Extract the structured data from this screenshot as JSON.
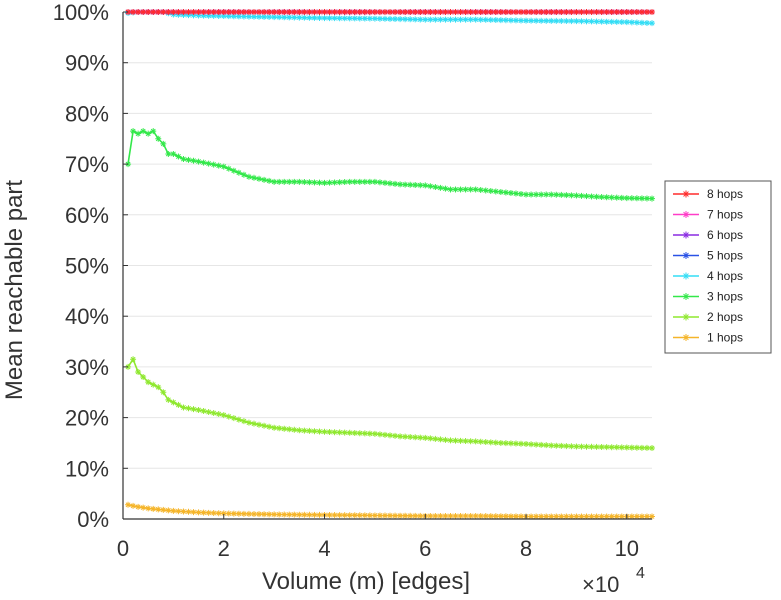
{
  "chart_data": {
    "type": "line",
    "xlabel": "Volume (m) [edges]",
    "ylabel": "Mean reachable part",
    "x_exponent": {
      "base": "×10",
      "power": "4"
    },
    "xlim": [
      0,
      10.5
    ],
    "ylim": [
      0,
      100
    ],
    "x_ticks": [
      0,
      2,
      4,
      6,
      8,
      10
    ],
    "x_tick_labels": [
      "0",
      "2",
      "4",
      "6",
      "8",
      "10"
    ],
    "y_ticks": [
      0,
      10,
      20,
      30,
      40,
      50,
      60,
      70,
      80,
      90,
      100
    ],
    "y_tick_labels": [
      "0%",
      "10%",
      "20%",
      "30%",
      "40%",
      "50%",
      "60%",
      "70%",
      "80%",
      "90%",
      "100%"
    ],
    "grid": true,
    "legend_position": "outside-right",
    "series": [
      {
        "name": "8 hops",
        "color": "#ff2b2b",
        "x": [
          0.1,
          0.5,
          1,
          2,
          3,
          4,
          5,
          6,
          7,
          8,
          9,
          10,
          10.5
        ],
        "y": [
          100,
          100,
          100,
          100,
          100,
          100,
          100,
          100,
          100,
          100,
          100,
          100,
          100
        ]
      },
      {
        "name": "7 hops",
        "color": "#ff3dc8",
        "x": [
          0.1,
          0.5,
          1,
          2,
          3,
          4,
          5,
          6,
          7,
          8,
          9,
          10,
          10.5
        ],
        "y": [
          100,
          100,
          100,
          100,
          100,
          100,
          100,
          100,
          100,
          100,
          100,
          100,
          100
        ]
      },
      {
        "name": "6 hops",
        "color": "#8a2be2",
        "x": [
          0.1,
          0.5,
          1,
          2,
          3,
          4,
          5,
          6,
          7,
          8,
          9,
          10,
          10.5
        ],
        "y": [
          100,
          100,
          100,
          100,
          100,
          100,
          100,
          100,
          100,
          100,
          100,
          100,
          100
        ]
      },
      {
        "name": "5 hops",
        "color": "#2a52e6",
        "x": [
          0.1,
          0.5,
          1,
          2,
          3,
          4,
          5,
          6,
          7,
          8,
          9,
          10,
          10.5
        ],
        "y": [
          100,
          100,
          100,
          100,
          100,
          100,
          100,
          100,
          100,
          100,
          100,
          100,
          100
        ]
      },
      {
        "name": "4 hops",
        "color": "#33ddf5",
        "x": [
          0.1,
          0.3,
          0.5,
          0.8,
          1,
          1.5,
          2,
          3,
          4,
          5,
          6,
          7,
          8,
          9,
          10,
          10.5
        ],
        "y": [
          99.8,
          100,
          100,
          100,
          99.5,
          99.3,
          99.2,
          99,
          98.8,
          98.7,
          98.5,
          98.5,
          98.3,
          98.2,
          98,
          97.8
        ]
      },
      {
        "name": "3 hops",
        "color": "#33e84a",
        "x": [
          0.1,
          0.2,
          0.3,
          0.4,
          0.5,
          0.6,
          0.7,
          0.8,
          0.9,
          1.0,
          1.2,
          1.5,
          2,
          2.5,
          3,
          3.5,
          4,
          4.5,
          5,
          5.5,
          6,
          6.5,
          7,
          7.5,
          8,
          8.5,
          9,
          9.5,
          10,
          10.5
        ],
        "y": [
          70,
          76.5,
          76,
          76.5,
          76,
          76.5,
          75,
          74,
          72,
          72,
          71,
          70.5,
          69.5,
          67.5,
          66.5,
          66.5,
          66.3,
          66.5,
          66.5,
          66,
          65.8,
          65,
          65,
          64.5,
          64,
          64,
          63.8,
          63.5,
          63.3,
          63.2
        ]
      },
      {
        "name": "2 hops",
        "color": "#8fe82f",
        "x": [
          0.1,
          0.2,
          0.3,
          0.4,
          0.5,
          0.6,
          0.7,
          0.8,
          0.9,
          1.0,
          1.2,
          1.5,
          2,
          2.5,
          3,
          3.5,
          4,
          4.5,
          5,
          5.5,
          6,
          6.5,
          7,
          7.5,
          8,
          8.5,
          9,
          9.5,
          10,
          10.5
        ],
        "y": [
          30,
          31.5,
          29,
          28,
          27,
          26.5,
          26,
          25,
          23.5,
          23,
          22,
          21.5,
          20.5,
          19,
          18,
          17.5,
          17.2,
          17,
          16.8,
          16.3,
          16,
          15.5,
          15.3,
          15,
          14.8,
          14.5,
          14.3,
          14.2,
          14.1,
          14
        ]
      },
      {
        "name": "1 hops",
        "color": "#f5b52a",
        "x": [
          0.1,
          0.2,
          0.3,
          0.5,
          0.7,
          1.0,
          1.5,
          2,
          3,
          4,
          5,
          6,
          7,
          8,
          9,
          10,
          10.5
        ],
        "y": [
          2.8,
          2.6,
          2.4,
          2.1,
          1.9,
          1.6,
          1.3,
          1.1,
          0.9,
          0.8,
          0.7,
          0.6,
          0.6,
          0.5,
          0.5,
          0.5,
          0.5
        ]
      }
    ]
  }
}
